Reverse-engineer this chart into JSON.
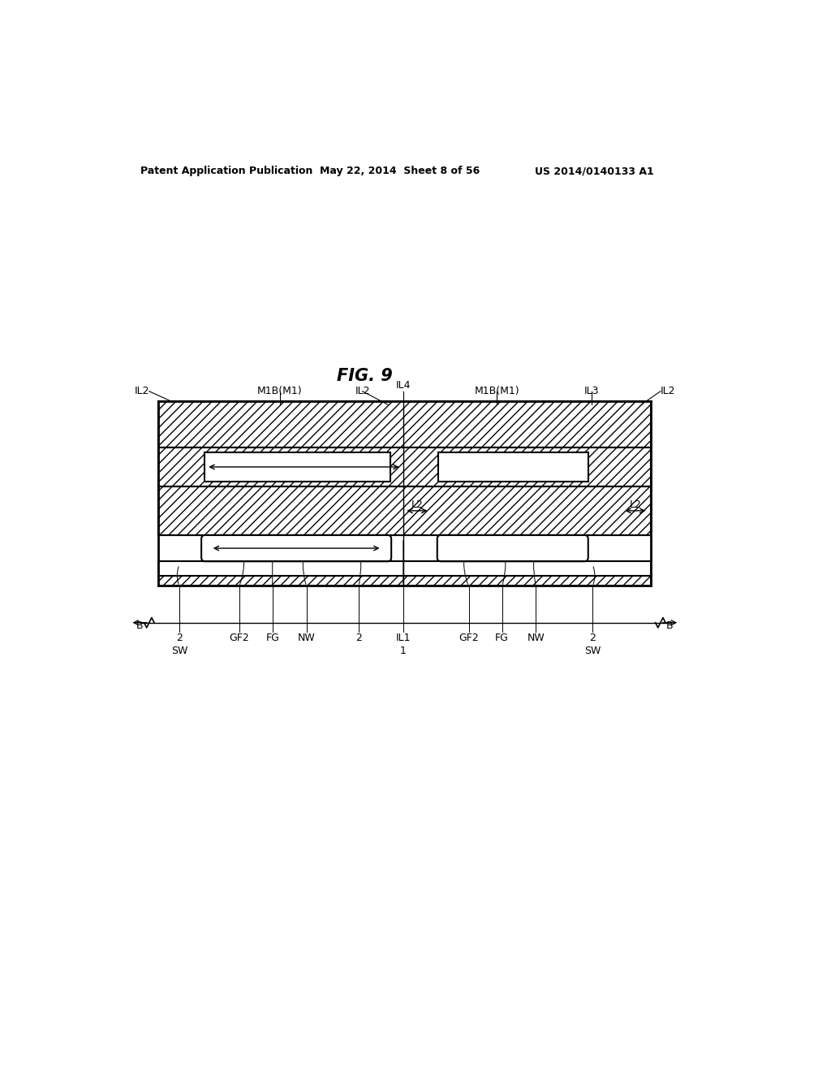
{
  "title": "FIG. 9",
  "header_left": "Patent Application Publication",
  "header_mid": "May 22, 2014  Sheet 8 of 56",
  "header_right": "US 2014/0140133 A1",
  "bg_color": "#ffffff",
  "line_color": "#000000"
}
